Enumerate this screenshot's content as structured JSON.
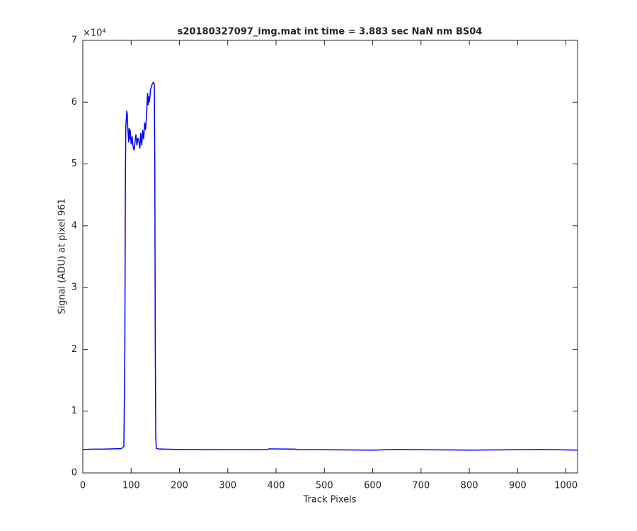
{
  "chart_data": {
    "type": "line",
    "title": "s20180327097_img.mat int time = 3.883 sec  NaN nm BS04",
    "xlabel": "Track Pixels",
    "ylabel": "Signal (ADU) at pixel 961",
    "y_exponent_label": "×10⁴",
    "xlim": [
      0,
      1024
    ],
    "ylim": [
      0,
      70000
    ],
    "xticks": [
      0,
      100,
      200,
      300,
      400,
      500,
      600,
      700,
      800,
      900,
      1000
    ],
    "yticks": [
      {
        "value": 0,
        "label": "0"
      },
      {
        "value": 10000,
        "label": "1"
      },
      {
        "value": 20000,
        "label": "2"
      },
      {
        "value": 30000,
        "label": "3"
      },
      {
        "value": 40000,
        "label": "4"
      },
      {
        "value": 50000,
        "label": "5"
      },
      {
        "value": 60000,
        "label": "6"
      },
      {
        "value": 70000,
        "label": "7"
      }
    ],
    "grid": false,
    "series": [
      {
        "color": "#0000ff",
        "x": [
          0,
          20,
          40,
          60,
          80,
          85,
          87,
          88,
          89,
          91,
          92,
          93,
          95,
          96,
          97,
          98,
          100,
          102,
          104,
          106,
          108,
          110,
          112,
          114,
          116,
          118,
          120,
          122,
          124,
          126,
          128,
          130,
          132,
          134,
          135,
          137,
          138,
          140,
          142,
          144,
          146,
          148,
          149,
          150,
          151,
          152,
          155,
          170,
          200,
          300,
          380,
          385,
          440,
          445,
          500,
          600,
          650,
          700,
          800,
          900,
          950,
          1024
        ],
        "values": [
          3800,
          3850,
          3850,
          3900,
          3950,
          4300,
          20000,
          45000,
          56000,
          58600,
          58000,
          56000,
          53500,
          55800,
          54000,
          55500,
          53200,
          54500,
          52800,
          52200,
          53500,
          54800,
          53000,
          54200,
          53800,
          52500,
          55000,
          53000,
          55500,
          54000,
          56700,
          55500,
          58000,
          61500,
          59500,
          61000,
          60000,
          62000,
          62500,
          63000,
          63200,
          63000,
          50000,
          20000,
          6000,
          4000,
          3900,
          3850,
          3800,
          3750,
          3750,
          3900,
          3850,
          3750,
          3750,
          3700,
          3800,
          3750,
          3700,
          3750,
          3800,
          3700
        ]
      }
    ]
  }
}
